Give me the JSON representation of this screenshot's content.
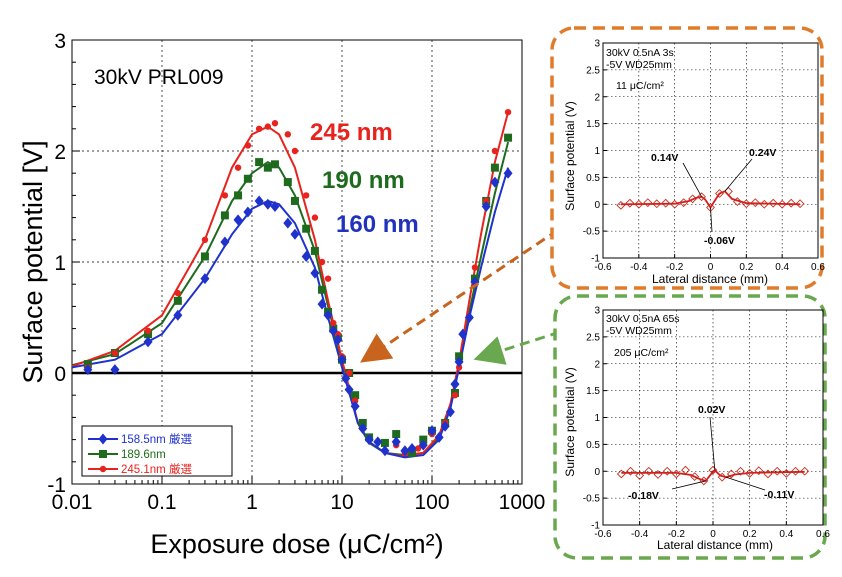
{
  "chart_data": [
    {
      "type": "scatter",
      "xscale": "log",
      "xlim": [
        0.01,
        1000
      ],
      "ylim": [
        -1,
        3
      ],
      "xlabel": "Exposure dose (μC/cm²)",
      "ylabel": "Surface potential [V]",
      "x_ticks": [
        "0.01",
        "0.1",
        "1",
        "10",
        "100",
        "1000"
      ],
      "y_ticks": [
        "-1",
        "0",
        "1",
        "2",
        "3"
      ],
      "inner_label": "30kV  PRL009",
      "annotations": [
        {
          "text": "245 nm",
          "color": "#e8231e"
        },
        {
          "text": "190 nm",
          "color": "#1e6b1e"
        },
        {
          "text": "160 nm",
          "color": "#2233bb"
        }
      ],
      "legend_position": "bottom-left",
      "series": [
        {
          "name": "158.5nm 厳選",
          "color": "#1f33cc",
          "marker": "diamond",
          "points": [
            [
              0.015,
              0.03
            ],
            [
              0.03,
              0.03
            ],
            [
              0.07,
              0.28
            ],
            [
              0.15,
              0.52
            ],
            [
              0.3,
              0.85
            ],
            [
              0.5,
              1.18
            ],
            [
              0.7,
              1.38
            ],
            [
              0.9,
              1.45
            ],
            [
              1.2,
              1.55
            ],
            [
              1.5,
              1.52
            ],
            [
              1.8,
              1.5
            ],
            [
              2.5,
              1.35
            ],
            [
              3,
              1.25
            ],
            [
              4,
              1.05
            ],
            [
              5,
              0.9
            ],
            [
              6,
              0.62
            ],
            [
              7,
              0.52
            ],
            [
              8,
              0.38
            ],
            [
              9,
              0.3
            ],
            [
              10,
              0.12
            ],
            [
              11,
              -0.05
            ],
            [
              12,
              -0.15
            ],
            [
              14,
              -0.3
            ],
            [
              17,
              -0.5
            ],
            [
              20,
              -0.6
            ],
            [
              25,
              -0.62
            ],
            [
              30,
              -0.7
            ],
            [
              40,
              -0.62
            ],
            [
              50,
              -0.7
            ],
            [
              60,
              -0.68
            ],
            [
              80,
              -0.65
            ],
            [
              100,
              -0.52
            ],
            [
              120,
              -0.58
            ],
            [
              140,
              -0.48
            ],
            [
              160,
              -0.35
            ],
            [
              180,
              -0.1
            ],
            [
              200,
              0.1
            ],
            [
              220,
              0.35
            ],
            [
              260,
              0.5
            ],
            [
              300,
              0.82
            ],
            [
              400,
              1.5
            ],
            [
              500,
              1.72
            ],
            [
              700,
              1.8
            ]
          ],
          "curve": [
            [
              0.01,
              0.05
            ],
            [
              0.03,
              0.12
            ],
            [
              0.1,
              0.35
            ],
            [
              0.3,
              0.85
            ],
            [
              0.6,
              1.25
            ],
            [
              1,
              1.48
            ],
            [
              1.5,
              1.55
            ],
            [
              2,
              1.52
            ],
            [
              3,
              1.35
            ],
            [
              5,
              0.95
            ],
            [
              7,
              0.5
            ],
            [
              10,
              0.05
            ],
            [
              15,
              -0.45
            ],
            [
              20,
              -0.62
            ],
            [
              30,
              -0.72
            ],
            [
              50,
              -0.76
            ],
            [
              80,
              -0.74
            ],
            [
              120,
              -0.6
            ],
            [
              160,
              -0.32
            ],
            [
              200,
              0.05
            ],
            [
              260,
              0.5
            ],
            [
              350,
              0.95
            ],
            [
              500,
              1.45
            ],
            [
              700,
              1.85
            ]
          ]
        },
        {
          "name": "189.6nm",
          "color": "#1e6b1e",
          "marker": "square",
          "points": [
            [
              0.015,
              0.08
            ],
            [
              0.03,
              0.18
            ],
            [
              0.07,
              0.35
            ],
            [
              0.15,
              0.65
            ],
            [
              0.3,
              1.05
            ],
            [
              0.5,
              1.42
            ],
            [
              0.7,
              1.6
            ],
            [
              0.9,
              1.75
            ],
            [
              1.2,
              1.9
            ],
            [
              1.5,
              1.85
            ],
            [
              1.8,
              1.88
            ],
            [
              2.5,
              1.72
            ],
            [
              3,
              1.55
            ],
            [
              4,
              1.3
            ],
            [
              5,
              1.1
            ],
            [
              6,
              0.75
            ],
            [
              7,
              0.55
            ],
            [
              8,
              0.4
            ],
            [
              9,
              0.32
            ],
            [
              10,
              0.12
            ],
            [
              12,
              0.0
            ],
            [
              14,
              -0.2
            ],
            [
              17,
              -0.45
            ],
            [
              20,
              -0.58
            ],
            [
              30,
              -0.63
            ],
            [
              40,
              -0.55
            ],
            [
              60,
              -0.72
            ],
            [
              80,
              -0.6
            ],
            [
              100,
              -0.52
            ],
            [
              140,
              -0.45
            ],
            [
              180,
              -0.18
            ],
            [
              200,
              0.15
            ],
            [
              300,
              0.85
            ],
            [
              400,
              1.55
            ],
            [
              500,
              1.85
            ],
            [
              700,
              2.12
            ]
          ],
          "curve": [
            [
              0.01,
              0.07
            ],
            [
              0.03,
              0.17
            ],
            [
              0.1,
              0.45
            ],
            [
              0.3,
              1.05
            ],
            [
              0.6,
              1.55
            ],
            [
              1,
              1.8
            ],
            [
              1.5,
              1.9
            ],
            [
              2,
              1.85
            ],
            [
              3,
              1.6
            ],
            [
              5,
              1.1
            ],
            [
              7,
              0.6
            ],
            [
              10,
              0.1
            ],
            [
              15,
              -0.45
            ],
            [
              20,
              -0.63
            ],
            [
              30,
              -0.72
            ],
            [
              50,
              -0.74
            ],
            [
              80,
              -0.72
            ],
            [
              120,
              -0.58
            ],
            [
              160,
              -0.3
            ],
            [
              200,
              0.07
            ],
            [
              260,
              0.55
            ],
            [
              350,
              1.05
            ],
            [
              500,
              1.62
            ],
            [
              700,
              2.08
            ]
          ]
        },
        {
          "name": "245.1nm 厳選",
          "color": "#e8231e",
          "marker": "circle",
          "points": [
            [
              0.015,
              0.05
            ],
            [
              0.03,
              0.18
            ],
            [
              0.07,
              0.38
            ],
            [
              0.15,
              0.72
            ],
            [
              0.3,
              1.2
            ],
            [
              0.5,
              1.6
            ],
            [
              0.7,
              1.85
            ],
            [
              0.9,
              2.05
            ],
            [
              1.2,
              2.2
            ],
            [
              1.5,
              2.22
            ],
            [
              1.8,
              2.25
            ],
            [
              2.5,
              2.15
            ],
            [
              3,
              2.0
            ],
            [
              4,
              1.6
            ],
            [
              5,
              1.4
            ],
            [
              6,
              1.0
            ],
            [
              7,
              0.85
            ],
            [
              8,
              0.45
            ],
            [
              9,
              0.35
            ],
            [
              10,
              0.15
            ],
            [
              12,
              0.0
            ],
            [
              14,
              -0.25
            ],
            [
              17,
              -0.5
            ],
            [
              20,
              -0.6
            ],
            [
              30,
              -0.7
            ],
            [
              40,
              -0.65
            ],
            [
              50,
              -0.72
            ],
            [
              70,
              -0.68
            ],
            [
              100,
              -0.55
            ],
            [
              140,
              -0.45
            ],
            [
              180,
              -0.2
            ],
            [
              200,
              0.05
            ],
            [
              300,
              0.95
            ],
            [
              400,
              1.55
            ],
            [
              500,
              2.0
            ],
            [
              700,
              2.35
            ]
          ],
          "curve": [
            [
              0.01,
              0.06
            ],
            [
              0.03,
              0.2
            ],
            [
              0.1,
              0.52
            ],
            [
              0.3,
              1.2
            ],
            [
              0.6,
              1.85
            ],
            [
              1,
              2.15
            ],
            [
              1.5,
              2.22
            ],
            [
              2,
              2.15
            ],
            [
              3,
              1.85
            ],
            [
              5,
              1.2
            ],
            [
              7,
              0.65
            ],
            [
              10,
              0.12
            ],
            [
              15,
              -0.45
            ],
            [
              20,
              -0.62
            ],
            [
              30,
              -0.72
            ],
            [
              50,
              -0.75
            ],
            [
              80,
              -0.72
            ],
            [
              120,
              -0.56
            ],
            [
              160,
              -0.28
            ],
            [
              200,
              0.1
            ],
            [
              260,
              0.65
            ],
            [
              350,
              1.25
            ],
            [
              500,
              1.9
            ],
            [
              700,
              2.35
            ]
          ]
        }
      ]
    },
    {
      "type": "line",
      "xlim": [
        -0.6,
        0.6
      ],
      "ylim": [
        -1,
        3
      ],
      "xlabel": "Lateral distance (mm)",
      "ylabel": "Surface potential (V)",
      "x_ticks": [
        "-0.6",
        "-0.4",
        "-0.2",
        "0",
        "0.2",
        "0.4",
        "0.6"
      ],
      "y_ticks": [
        "-1",
        "-0.5",
        "0",
        "0.5",
        "1",
        "1.5",
        "2",
        "2.5",
        "3"
      ],
      "info": [
        "30kV 0.5nA 3s",
        "-5V WD25mm"
      ],
      "dose_text": "11 μC/cm²",
      "labels": [
        "0.14V",
        "0.24V",
        "-0.06V"
      ],
      "points_x": [
        -0.5,
        -0.45,
        -0.4,
        -0.35,
        -0.3,
        -0.25,
        -0.2,
        -0.15,
        -0.1,
        -0.05,
        0,
        0.05,
        0.1,
        0.15,
        0.2,
        0.25,
        0.3,
        0.35,
        0.4,
        0.45,
        0.5
      ],
      "points_y": [
        -0.02,
        0.02,
        0.0,
        0.03,
        0.01,
        0.02,
        0.0,
        0.03,
        0.1,
        0.14,
        -0.06,
        0.2,
        0.24,
        0.05,
        0.01,
        0.03,
        0.0,
        0.02,
        0.0,
        0.02,
        0.01
      ],
      "curve_x": [
        -0.5,
        -0.2,
        -0.12,
        -0.08,
        -0.05,
        -0.03,
        0,
        0.03,
        0.05,
        0.08,
        0.12,
        0.2,
        0.5
      ],
      "curve_y": [
        0.0,
        0.01,
        0.06,
        0.12,
        0.14,
        0.09,
        -0.06,
        0.1,
        0.2,
        0.24,
        0.1,
        0.02,
        0.0
      ]
    },
    {
      "type": "line",
      "xlim": [
        -0.6,
        0.6
      ],
      "ylim": [
        -1,
        3
      ],
      "xlabel": "Lateral distance (mm)",
      "ylabel": "Surface potential (V)",
      "x_ticks": [
        "-0.6",
        "-0.4",
        "-0.2",
        "0",
        "0.2",
        "0.4",
        "0.6"
      ],
      "y_ticks": [
        "-1",
        "-0.5",
        "0",
        "0.5",
        "1",
        "1.5",
        "2",
        "2.5",
        "3"
      ],
      "info": [
        "30kV 0.5nA 65s",
        "-5V WD25mm"
      ],
      "dose_text": "205 μC/cm²",
      "labels": [
        "0.02V",
        "-0.18V",
        "-0.11V"
      ],
      "points_x": [
        -0.5,
        -0.45,
        -0.4,
        -0.35,
        -0.3,
        -0.25,
        -0.2,
        -0.15,
        -0.1,
        -0.05,
        0,
        0.05,
        0.1,
        0.15,
        0.2,
        0.25,
        0.3,
        0.35,
        0.4,
        0.45,
        0.5
      ],
      "points_y": [
        -0.05,
        0.0,
        -0.08,
        0.0,
        -0.06,
        0.0,
        -0.05,
        0.02,
        -0.1,
        -0.18,
        0.02,
        -0.11,
        -0.05,
        0.0,
        -0.04,
        0.01,
        -0.05,
        0.0,
        -0.04,
        0.0,
        0.0
      ],
      "curve_x": [
        -0.5,
        -0.2,
        -0.12,
        -0.07,
        -0.04,
        -0.01,
        0.01,
        0.04,
        0.07,
        0.12,
        0.2,
        0.5
      ],
      "curve_y": [
        -0.03,
        -0.03,
        -0.07,
        -0.15,
        -0.18,
        -0.05,
        0.02,
        -0.08,
        -0.11,
        -0.06,
        -0.03,
        -0.01
      ]
    }
  ],
  "arrow_colors": [
    "#e07b2a",
    "#6aa84f"
  ]
}
